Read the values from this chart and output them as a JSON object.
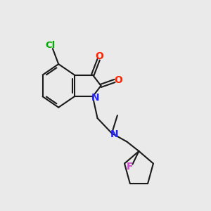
{
  "background_color": "#eaeaea",
  "bond_color": "#1a1a1a",
  "lw": 1.5,
  "font_size": 10,
  "colors": {
    "O": "#ff2200",
    "N": "#2222ff",
    "Cl": "#00aa00",
    "F": "#cc44cc",
    "C": "#1a1a1a"
  },
  "xlim": [
    0.0,
    1.3
  ],
  "ylim": [
    0.0,
    1.1
  ],
  "figsize": [
    3.0,
    3.0
  ],
  "dpi": 100
}
